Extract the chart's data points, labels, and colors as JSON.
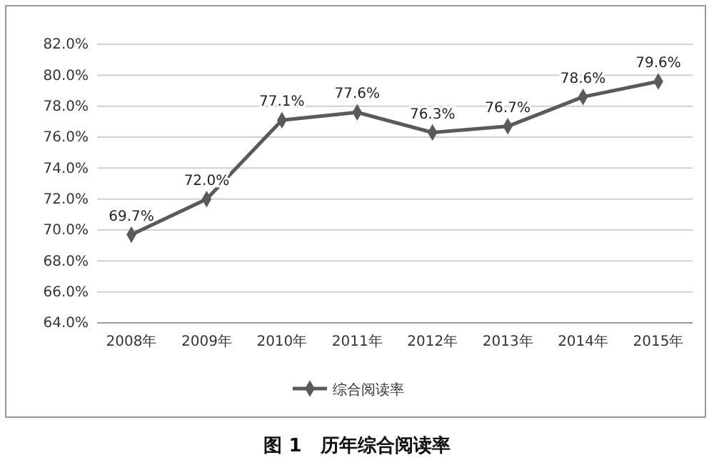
{
  "chart_data": {
    "type": "line",
    "title": "图 1　历年综合阅读率",
    "categories": [
      "2008年",
      "2009年",
      "2010年",
      "2011年",
      "2012年",
      "2013年",
      "2014年",
      "2015年"
    ],
    "series": [
      {
        "name": "综合阅读率",
        "color": "#5a5a5a",
        "values": [
          69.7,
          72.0,
          77.1,
          77.6,
          76.3,
          76.7,
          78.6,
          79.6
        ]
      }
    ],
    "value_labels": [
      "69.7%",
      "72.0%",
      "77.1%",
      "77.6%",
      "76.3%",
      "76.7%",
      "78.6%",
      "79.6%"
    ],
    "ylim": [
      64,
      82
    ],
    "yticks": [
      {
        "value": 64,
        "label": "64.0%"
      },
      {
        "value": 66,
        "label": "66.0%"
      },
      {
        "value": 68,
        "label": "68.0%"
      },
      {
        "value": 70,
        "label": "70.0%"
      },
      {
        "value": 72,
        "label": "72.0%"
      },
      {
        "value": 74,
        "label": "74.0%"
      },
      {
        "value": 76,
        "label": "76.0%"
      },
      {
        "value": 78,
        "label": "78.0%"
      },
      {
        "value": 80,
        "label": "80.0%"
      },
      {
        "value": 82,
        "label": "82.0%"
      }
    ],
    "grid": "y",
    "legend": "bottom",
    "marker": "diamond",
    "line_style": "solid"
  }
}
